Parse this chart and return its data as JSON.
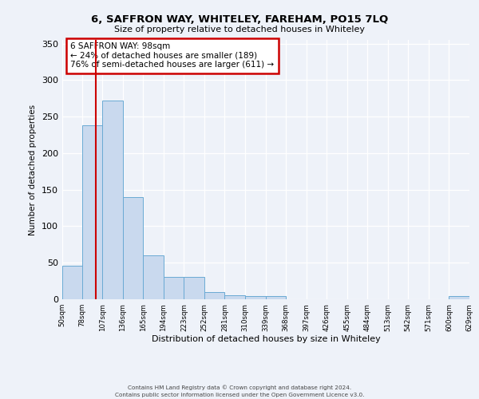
{
  "title": "6, SAFFRON WAY, WHITELEY, FAREHAM, PO15 7LQ",
  "subtitle": "Size of property relative to detached houses in Whiteley",
  "xlabel": "Distribution of detached houses by size in Whiteley",
  "ylabel": "Number of detached properties",
  "bar_left_edges": [
    50,
    78,
    107,
    136,
    165,
    194,
    223,
    252,
    281,
    310,
    339,
    368,
    397,
    426,
    455,
    484,
    513,
    542,
    571,
    600
  ],
  "bar_heights": [
    46,
    238,
    272,
    140,
    60,
    31,
    31,
    10,
    6,
    4,
    4,
    0,
    0,
    0,
    0,
    0,
    0,
    0,
    0,
    4
  ],
  "bin_width": 29,
  "bar_color": "#c9d9ee",
  "bar_edge_color": "#6aaad4",
  "vline_x": 98,
  "vline_color": "#cc0000",
  "annotation_text": "6 SAFFRON WAY: 98sqm\n← 24% of detached houses are smaller (189)\n76% of semi-detached houses are larger (611) →",
  "annotation_box_color": "#ffffff",
  "annotation_box_edge_color": "#cc0000",
  "tick_labels": [
    "50sqm",
    "78sqm",
    "107sqm",
    "136sqm",
    "165sqm",
    "194sqm",
    "223sqm",
    "252sqm",
    "281sqm",
    "310sqm",
    "339sqm",
    "368sqm",
    "397sqm",
    "426sqm",
    "455sqm",
    "484sqm",
    "513sqm",
    "542sqm",
    "571sqm",
    "600sqm",
    "629sqm"
  ],
  "ylim": [
    0,
    355
  ],
  "yticks": [
    0,
    50,
    100,
    150,
    200,
    250,
    300,
    350
  ],
  "background_color": "#eef2f9",
  "grid_color": "#ffffff",
  "footer_line1": "Contains HM Land Registry data © Crown copyright and database right 2024.",
  "footer_line2": "Contains public sector information licensed under the Open Government Licence v3.0."
}
